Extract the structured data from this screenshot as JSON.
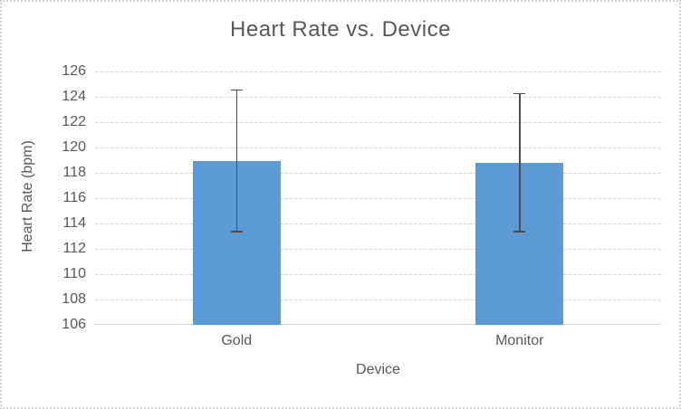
{
  "frame": {
    "background": "#ffffff",
    "border_color": "#d2d2d2"
  },
  "chart_data": {
    "type": "bar",
    "title": "Heart Rate vs. Device",
    "xlabel": "Device",
    "ylabel": "Heart Rate (bpm)",
    "categories": [
      "Gold",
      "Monitor"
    ],
    "values": [
      118.9,
      118.8
    ],
    "error_bars": {
      "upper": [
        124.5,
        124.2
      ],
      "lower": [
        113.4,
        113.4
      ]
    },
    "ylim": [
      106,
      126
    ],
    "ytick_step": 2,
    "ytick_labels": [
      "106",
      "108",
      "110",
      "112",
      "114",
      "116",
      "118",
      "120",
      "122",
      "124",
      "126"
    ],
    "grid": true,
    "legend": "none",
    "bar_color": "#5B9BD5",
    "error_bar_color": "#4d4d4d",
    "gridline_color": "#D9D9D9",
    "text_color": "#595959"
  }
}
